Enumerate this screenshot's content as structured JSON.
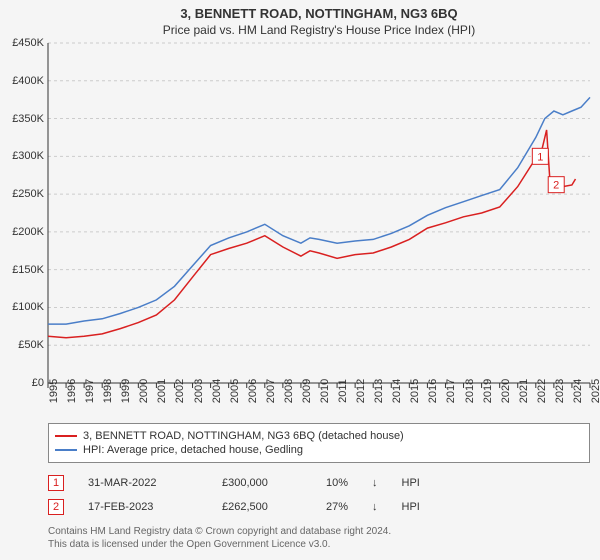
{
  "title": "3, BENNETT ROAD, NOTTINGHAM, NG3 6BQ",
  "subtitle": "Price paid vs. HM Land Registry's House Price Index (HPI)",
  "chart": {
    "type": "line",
    "background_color": "#f5f5f5",
    "grid_color": "#cccccc",
    "axis_color": "#333333",
    "label_fontsize": 11,
    "ylim": [
      0,
      450000
    ],
    "ytick_step": 50000,
    "yticks": [
      "£0",
      "£50K",
      "£100K",
      "£150K",
      "£200K",
      "£250K",
      "£300K",
      "£350K",
      "£400K",
      "£450K"
    ],
    "xlim": [
      1995,
      2025
    ],
    "xticks": [
      1995,
      1996,
      1997,
      1998,
      1999,
      2000,
      2001,
      2002,
      2003,
      2004,
      2005,
      2006,
      2007,
      2008,
      2009,
      2010,
      2011,
      2012,
      2013,
      2014,
      2015,
      2016,
      2017,
      2018,
      2019,
      2020,
      2021,
      2022,
      2023,
      2024,
      2025
    ],
    "series": [
      {
        "name": "3, BENNETT ROAD, NOTTINGHAM, NG3 6BQ (detached house)",
        "color": "#d92020",
        "width": 1.5,
        "points": [
          [
            1995,
            62000
          ],
          [
            1996,
            60000
          ],
          [
            1997,
            62000
          ],
          [
            1998,
            65000
          ],
          [
            1999,
            72000
          ],
          [
            2000,
            80000
          ],
          [
            2001,
            90000
          ],
          [
            2002,
            110000
          ],
          [
            2003,
            140000
          ],
          [
            2004,
            170000
          ],
          [
            2005,
            178000
          ],
          [
            2006,
            185000
          ],
          [
            2007,
            195000
          ],
          [
            2008,
            180000
          ],
          [
            2009,
            168000
          ],
          [
            2009.5,
            175000
          ],
          [
            2010,
            172000
          ],
          [
            2011,
            165000
          ],
          [
            2012,
            170000
          ],
          [
            2013,
            172000
          ],
          [
            2014,
            180000
          ],
          [
            2015,
            190000
          ],
          [
            2016,
            205000
          ],
          [
            2017,
            212000
          ],
          [
            2018,
            220000
          ],
          [
            2019,
            225000
          ],
          [
            2020,
            233000
          ],
          [
            2021,
            260000
          ],
          [
            2021.8,
            290000
          ],
          [
            2022.25,
            300000
          ],
          [
            2022.6,
            335000
          ],
          [
            2022.8,
            260000
          ],
          [
            2023.13,
            262500
          ],
          [
            2023.5,
            260000
          ],
          [
            2024,
            262000
          ],
          [
            2024.2,
            270000
          ]
        ]
      },
      {
        "name": "HPI: Average price, detached house, Gedling",
        "color": "#4a7ec8",
        "width": 1.5,
        "points": [
          [
            1995,
            78000
          ],
          [
            1996,
            78000
          ],
          [
            1997,
            82000
          ],
          [
            1998,
            85000
          ],
          [
            1999,
            92000
          ],
          [
            2000,
            100000
          ],
          [
            2001,
            110000
          ],
          [
            2002,
            128000
          ],
          [
            2003,
            155000
          ],
          [
            2004,
            182000
          ],
          [
            2005,
            192000
          ],
          [
            2006,
            200000
          ],
          [
            2007,
            210000
          ],
          [
            2008,
            195000
          ],
          [
            2009,
            185000
          ],
          [
            2009.5,
            192000
          ],
          [
            2010,
            190000
          ],
          [
            2011,
            185000
          ],
          [
            2012,
            188000
          ],
          [
            2013,
            190000
          ],
          [
            2014,
            198000
          ],
          [
            2015,
            208000
          ],
          [
            2016,
            222000
          ],
          [
            2017,
            232000
          ],
          [
            2018,
            240000
          ],
          [
            2019,
            248000
          ],
          [
            2020,
            256000
          ],
          [
            2021,
            285000
          ],
          [
            2022,
            325000
          ],
          [
            2022.5,
            350000
          ],
          [
            2023,
            360000
          ],
          [
            2023.5,
            355000
          ],
          [
            2024,
            360000
          ],
          [
            2024.5,
            365000
          ],
          [
            2025,
            378000
          ]
        ]
      }
    ],
    "markers": [
      {
        "id": "1",
        "x": 2022.25,
        "y": 300000,
        "color": "#d92020"
      },
      {
        "id": "2",
        "x": 2023.13,
        "y": 262500,
        "color": "#d92020"
      }
    ]
  },
  "legend": [
    {
      "color": "#d92020",
      "label": "3, BENNETT ROAD, NOTTINGHAM, NG3 6BQ (detached house)"
    },
    {
      "color": "#4a7ec8",
      "label": "HPI: Average price, detached house, Gedling"
    }
  ],
  "sales": [
    {
      "id": "1",
      "color": "#d92020",
      "date": "31-MAR-2022",
      "price": "£300,000",
      "delta": "10%",
      "direction": "↓",
      "ref": "HPI"
    },
    {
      "id": "2",
      "color": "#d92020",
      "date": "17-FEB-2023",
      "price": "£262,500",
      "delta": "27%",
      "direction": "↓",
      "ref": "HPI"
    }
  ],
  "footer_line1": "Contains HM Land Registry data © Crown copyright and database right 2024.",
  "footer_line2": "This data is licensed under the Open Government Licence v3.0."
}
